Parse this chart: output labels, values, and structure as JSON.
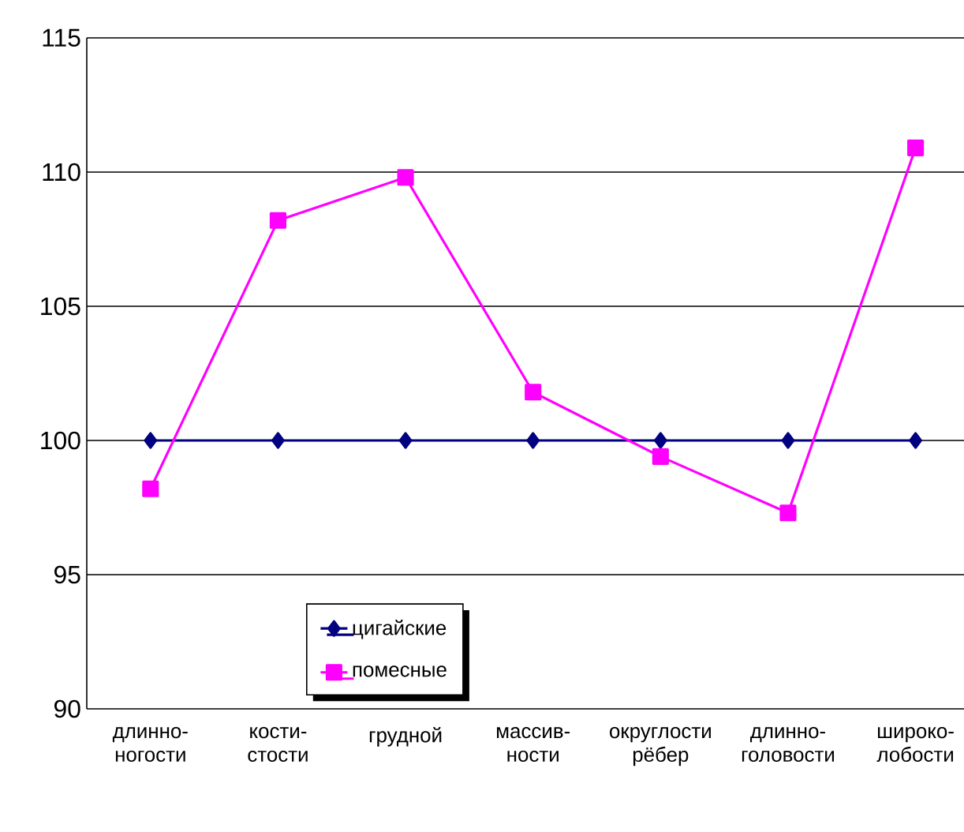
{
  "chart_data": {
    "type": "line",
    "categories": [
      "длинно- ногости",
      "кости- стости",
      "грудной",
      "массив- ности",
      "округлости рёбер",
      "длинно- головости",
      "широко- лобости"
    ],
    "series": [
      {
        "name": "цигайские",
        "color": "#000080",
        "marker": "diamond",
        "values": [
          100,
          100,
          100,
          100,
          100,
          100,
          100
        ]
      },
      {
        "name": "помесные",
        "color": "#ff00ff",
        "marker": "square",
        "values": [
          98.2,
          108.2,
          109.8,
          101.8,
          99.4,
          97.3,
          110.9
        ]
      }
    ],
    "ylim": [
      90,
      115
    ],
    "yticks": [
      90,
      95,
      100,
      105,
      110,
      115
    ],
    "grid": "y",
    "legend": "bottom",
    "line_style": "solid"
  }
}
